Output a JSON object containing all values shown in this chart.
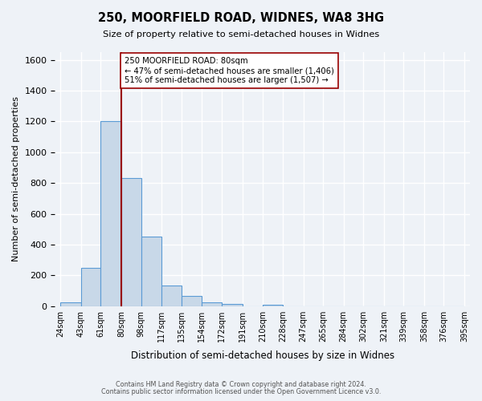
{
  "title": "250, MOORFIELD ROAD, WIDNES, WA8 3HG",
  "subtitle": "Size of property relative to semi-detached houses in Widnes",
  "xlabel": "Distribution of semi-detached houses by size in Widnes",
  "ylabel": "Number of semi-detached properties",
  "bin_labels": [
    "24sqm",
    "43sqm",
    "61sqm",
    "80sqm",
    "98sqm",
    "117sqm",
    "135sqm",
    "154sqm",
    "172sqm",
    "191sqm",
    "210sqm",
    "228sqm",
    "247sqm",
    "265sqm",
    "284sqm",
    "302sqm",
    "321sqm",
    "339sqm",
    "358sqm",
    "376sqm",
    "395sqm"
  ],
  "bin_edges": [
    24,
    43,
    61,
    80,
    98,
    117,
    135,
    154,
    172,
    191,
    210,
    228,
    247,
    265,
    284,
    302,
    321,
    339,
    358,
    376,
    395
  ],
  "bar_heights": [
    25,
    250,
    1200,
    830,
    450,
    135,
    65,
    25,
    15,
    0,
    10,
    0,
    0,
    0,
    0,
    0,
    0,
    0,
    0,
    0
  ],
  "bar_color": "#c8d8e8",
  "bar_edge_color": "#5b9bd5",
  "vline_x": 80,
  "vline_color": "#990000",
  "annotation_title": "250 MOORFIELD ROAD: 80sqm",
  "annotation_line1": "← 47% of semi-detached houses are smaller (1,406)",
  "annotation_line2": "51% of semi-detached houses are larger (1,507) →",
  "annotation_box_color": "#ffffff",
  "annotation_box_edge": "#990000",
  "ylim": [
    0,
    1650
  ],
  "yticks": [
    0,
    200,
    400,
    600,
    800,
    1000,
    1200,
    1400,
    1600
  ],
  "footer1": "Contains HM Land Registry data © Crown copyright and database right 2024.",
  "footer2": "Contains public sector information licensed under the Open Government Licence v3.0.",
  "bg_color": "#eef2f7",
  "plot_bg_color": "#eef2f7",
  "grid_color": "#ffffff"
}
